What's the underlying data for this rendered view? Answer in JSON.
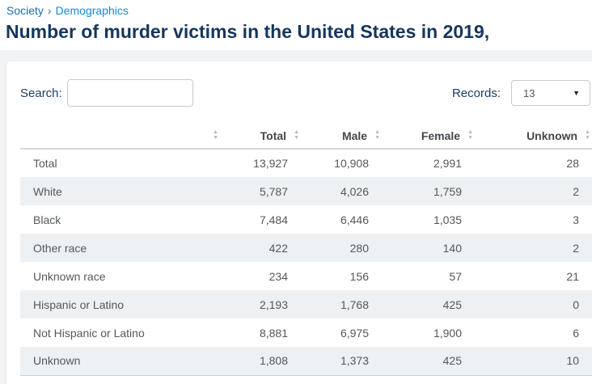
{
  "breadcrumb": {
    "root": "Society",
    "separator": "›",
    "current": "Demographics"
  },
  "page_title": "Number of murder victims in the United States in 2019,",
  "controls": {
    "search_label": "Search:",
    "search_value": "",
    "records_label": "Records:",
    "records_value": "13"
  },
  "icons": {
    "sort_asc": "▲",
    "sort_desc": "▼",
    "caret_down": "▼"
  },
  "table": {
    "columns": [
      "",
      "Total",
      "Male",
      "Female",
      "Unknown"
    ],
    "rows": [
      [
        "Total",
        "13,927",
        "10,908",
        "2,991",
        "28"
      ],
      [
        "White",
        "5,787",
        "4,026",
        "1,759",
        "2"
      ],
      [
        "Black",
        "7,484",
        "6,446",
        "1,035",
        "3"
      ],
      [
        "Other race",
        "422",
        "280",
        "140",
        "2"
      ],
      [
        "Unknown race",
        "234",
        "156",
        "57",
        "21"
      ],
      [
        "Hispanic or Latino",
        "2,193",
        "1,768",
        "425",
        "0"
      ],
      [
        "Not Hispanic or Latino",
        "8,881",
        "6,975",
        "1,900",
        "6"
      ],
      [
        "Unknown",
        "1,808",
        "1,373",
        "425",
        "10"
      ]
    ]
  },
  "colors": {
    "page_background": "#f1f3f5",
    "card_background": "#ffffff",
    "stripe": "#eef1f4",
    "title_navy": "#16365c",
    "label_navy": "#1d3e63",
    "breadcrumb_link": "#1a6fae",
    "breadcrumb_active": "#1b87d3",
    "header_text": "#43474b",
    "cell_text": "#54585b",
    "border": "#c9ced3"
  }
}
